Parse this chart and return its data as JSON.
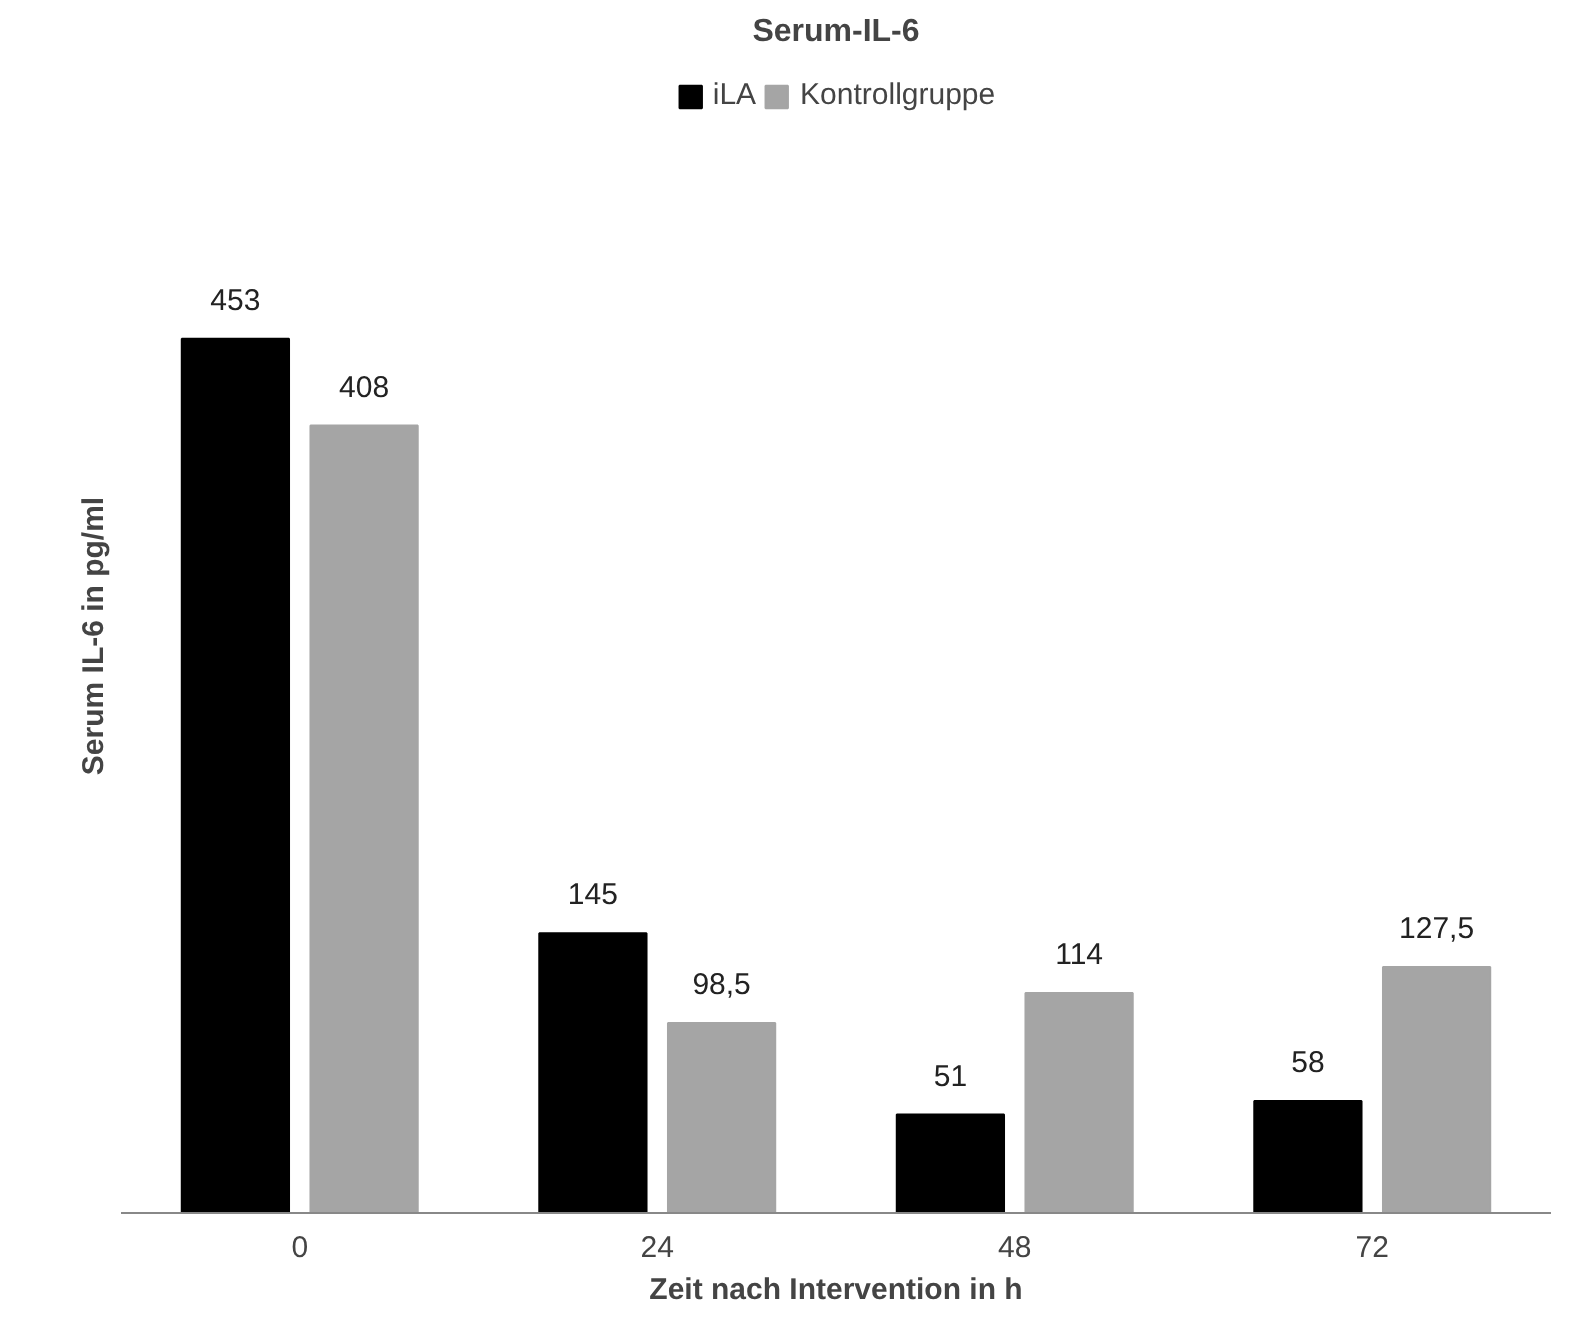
{
  "chart_data": {
    "type": "bar",
    "title": "Serum-IL-6",
    "xlabel": "Zeit nach Intervention in h",
    "ylabel": "Serum IL-6 in pg/ml",
    "categories": [
      "0",
      "24",
      "48",
      "72"
    ],
    "series": [
      {
        "name": "iLA",
        "color": "#000000",
        "values": [
          453,
          145,
          51,
          58
        ],
        "value_labels": [
          "453",
          "145",
          "51",
          "58"
        ]
      },
      {
        "name": "Kontrollgruppe",
        "color": "#a5a5a5",
        "values": [
          408,
          98.5,
          114,
          127.5
        ],
        "value_labels": [
          "408",
          "98,5",
          "114",
          "127,5"
        ]
      }
    ],
    "grid": false,
    "legend": "top"
  }
}
